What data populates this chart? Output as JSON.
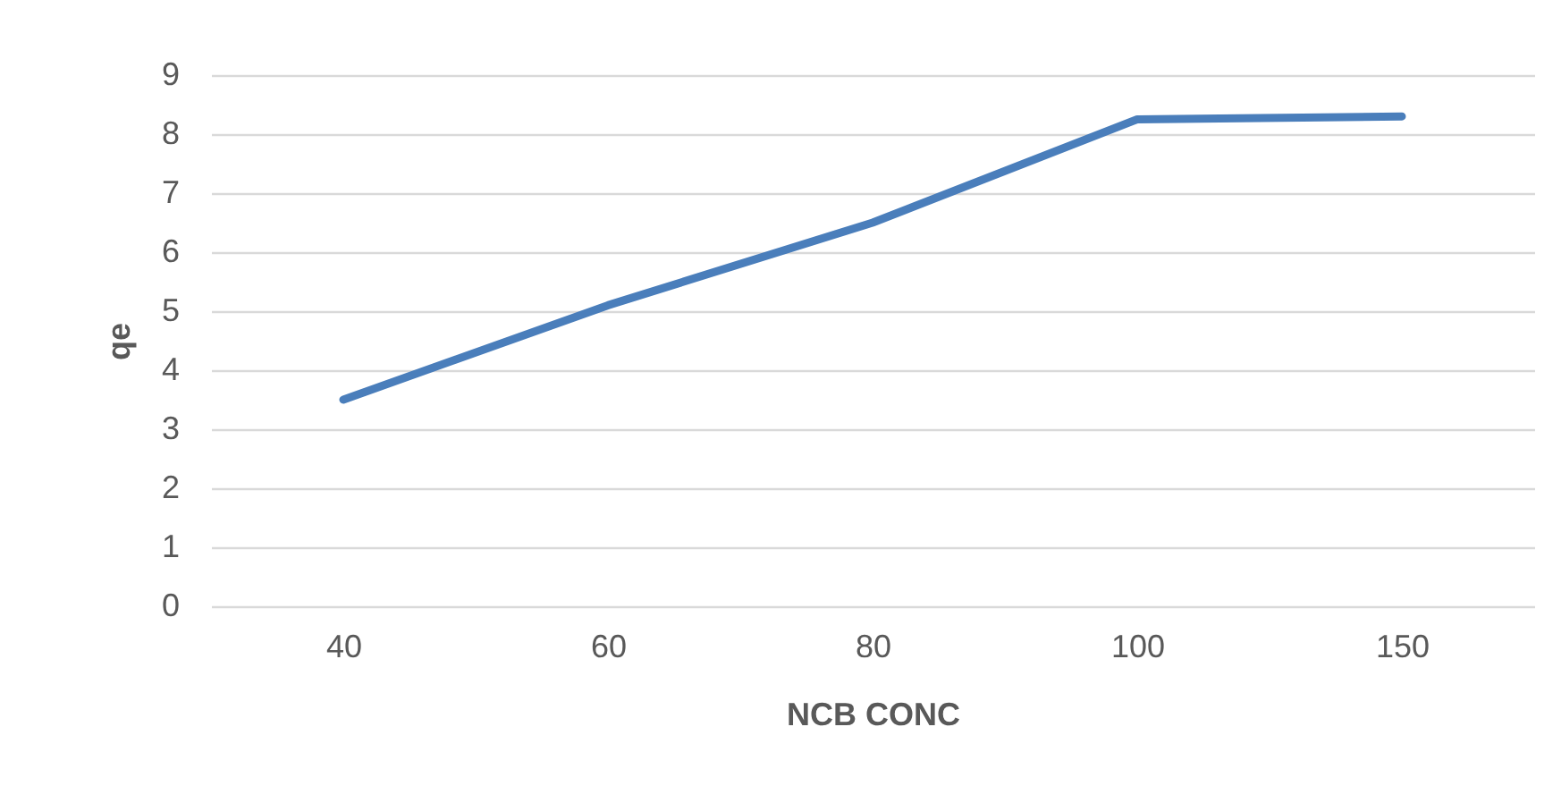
{
  "chart_data": {
    "type": "line",
    "xlabel": "NCB CONC",
    "ylabel": "qe",
    "categories": [
      "40",
      "60",
      "80",
      "100",
      "150"
    ],
    "series": [
      {
        "color": "#4a7ebb",
        "values": [
          3.5,
          5.1,
          6.5,
          8.25,
          8.3
        ]
      }
    ],
    "ylim": [
      0,
      9
    ],
    "yticks": [
      0,
      1,
      2,
      3,
      4,
      5,
      6,
      7,
      8,
      9
    ],
    "grid": "y",
    "legend": false,
    "marker": "none",
    "line_style": "solid"
  }
}
